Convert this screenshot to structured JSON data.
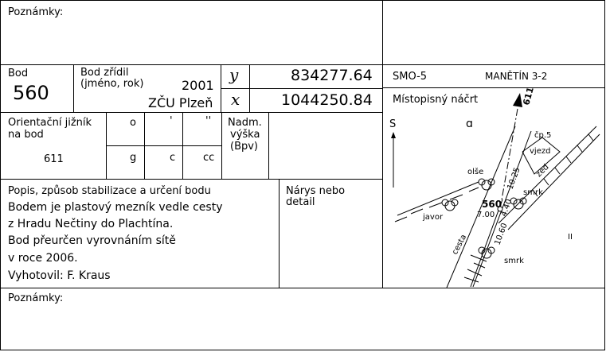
{
  "top_notes": {
    "label": "Poznámky:"
  },
  "bod": {
    "label": "Bod",
    "number": "560"
  },
  "bod_zridil": {
    "label_line1": "Bod zřídil",
    "label_line2": "(jméno, rok)",
    "year": "2001",
    "name": "ZČU Plzeň"
  },
  "coords": {
    "y_symbol": "y",
    "y_value": "834277.64",
    "x_symbol": "x",
    "x_value": "1044250.84"
  },
  "map_header": {
    "code": "SMO-5",
    "sheet": "MANĚTÍN 3-2",
    "sketch_label": "Místopisný náčrt"
  },
  "orientation": {
    "label_line1": "Orientační jižník",
    "label_line2": "na bod",
    "target": "611",
    "units_top": [
      "o",
      "'",
      "''"
    ],
    "units_bottom": [
      "g",
      "c",
      "cc"
    ]
  },
  "height": {
    "label_line1": "Nadm.",
    "label_line2": "výška",
    "label_line3": "(Bpv)"
  },
  "description": {
    "header": "Popis, způsob stabilizace a určení bodu",
    "lines": [
      "Bodem je plastový mezník vedle cesty",
      "z Hradu Nečtiny do Plachtína.",
      "Bod přeurčen vyrovnáním sítě",
      "v roce 2006.",
      "Vyhotovil: F. Kraus"
    ]
  },
  "narys": {
    "line1": "Nárys nebo",
    "line2": "detail"
  },
  "sketch": {
    "north_label": "S",
    "point_611": "611",
    "cp5": "čp.5",
    "vjezd": "vjezd",
    "zed": "zed",
    "olse": "olše",
    "javor": "javor",
    "smrk1": "smrk",
    "smrk2": "smrk",
    "cesta": "cesta",
    "point_560": "560",
    "d700": "7.00",
    "d440": "4.40",
    "d1025": "10.25",
    "d1060": "10.60",
    "marker": "II",
    "symbol_a": "ɑ"
  },
  "bottom_notes": {
    "label": "Poznámky:"
  }
}
